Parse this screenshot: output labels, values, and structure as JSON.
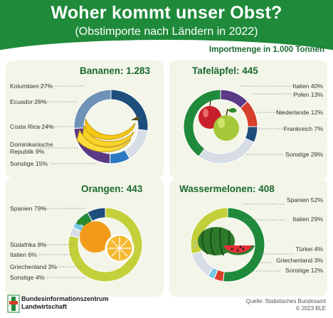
{
  "header": {
    "title": "Woher kommt unser Obst?",
    "subtitle": "(Obstimporte nach Ländern in 2022)"
  },
  "unit_label": "Importmenge in 1.000 Tonnen",
  "colors": {
    "green": "#1f8a3a",
    "navy": "#1d4e7c",
    "steel": "#6f93b8",
    "purple": "#5a3a85",
    "lime": "#c3d03a",
    "grey": "#d7dde4",
    "red": "#d7402a",
    "cyan": "#79c7e8",
    "blue": "#2b79c2"
  },
  "chart_data": [
    {
      "type": "pie",
      "title": "Bananen: 1.283",
      "total": 1283,
      "slices": [
        {
          "name": "Kolumbien",
          "label": "Kolumbien 27%",
          "value": 27,
          "color": "#1d4e7c"
        },
        {
          "name": "Sonstige",
          "label": "Sonstige 15%",
          "value": 15,
          "color": "#d7dde4"
        },
        {
          "name": "Dominikanische Republik",
          "label": "Dominikanische Republik 9%",
          "value": 9,
          "color": "#2b79c2"
        },
        {
          "name": "Costa Rica",
          "label": "Costa Rica 24%",
          "value": 24,
          "color": "#5a3a85"
        },
        {
          "name": "Ecuador",
          "label": "Ecuador 26%",
          "value": 26,
          "color": "#6f93b8"
        }
      ]
    },
    {
      "type": "pie",
      "title": "Tafeläpfel: 445",
      "total": 445,
      "slices": [
        {
          "name": "Polen",
          "label": "Polen 13%",
          "value": 13,
          "color": "#5a3a85"
        },
        {
          "name": "Niederlande",
          "label": "Niederlande 12%",
          "value": 12,
          "color": "#d7402a"
        },
        {
          "name": "Frankreich",
          "label": "Frankreich 7%",
          "value": 7,
          "color": "#1d4e7c"
        },
        {
          "name": "Sonstige",
          "label": "Sonstige 28%",
          "value": 28,
          "color": "#d7dde4"
        },
        {
          "name": "Italien",
          "label": "Italien 40%",
          "value": 40,
          "color": "#1f8a3a"
        }
      ]
    },
    {
      "type": "pie",
      "title": "Orangen: 443",
      "total": 443,
      "slices": [
        {
          "name": "Spanien",
          "label": "Spanien 79%",
          "value": 79,
          "color": "#c3d03a"
        },
        {
          "name": "Sonstige",
          "label": "Sonstige 4%",
          "value": 4,
          "color": "#d7dde4"
        },
        {
          "name": "Griechenland",
          "label": "Griechenland 3%",
          "value": 3,
          "color": "#79c7e8"
        },
        {
          "name": "Italien",
          "label": "Italien 6%",
          "value": 6,
          "color": "#1f8a3a"
        },
        {
          "name": "Südafrika",
          "label": "Südafrika 8%",
          "value": 8,
          "color": "#1d4e7c"
        }
      ]
    },
    {
      "type": "pie",
      "title": "Wassermelonen: 408",
      "total": 408,
      "slices": [
        {
          "name": "Spanien",
          "label": "Spanien 52%",
          "value": 52,
          "color": "#1f8a3a"
        },
        {
          "name": "Türkei",
          "label": "Türkei 4%",
          "value": 4,
          "color": "#d7402a"
        },
        {
          "name": "Griechenland",
          "label": "Griechenland 3%",
          "value": 3,
          "color": "#79c7e8"
        },
        {
          "name": "Sonstige",
          "label": "Sonstige 12%",
          "value": 12,
          "color": "#d7dde4"
        },
        {
          "name": "Italien",
          "label": "Italien 29%",
          "value": 29,
          "color": "#c3d03a"
        }
      ]
    }
  ],
  "footer": {
    "org_line1": "Bundesinformationszentrum",
    "org_line2": "Landwirtschaft",
    "source_line1": "Quelle: Statistisches Bundesamt",
    "source_line2": "© 2023 BLE",
    "watermark": "BLE"
  }
}
